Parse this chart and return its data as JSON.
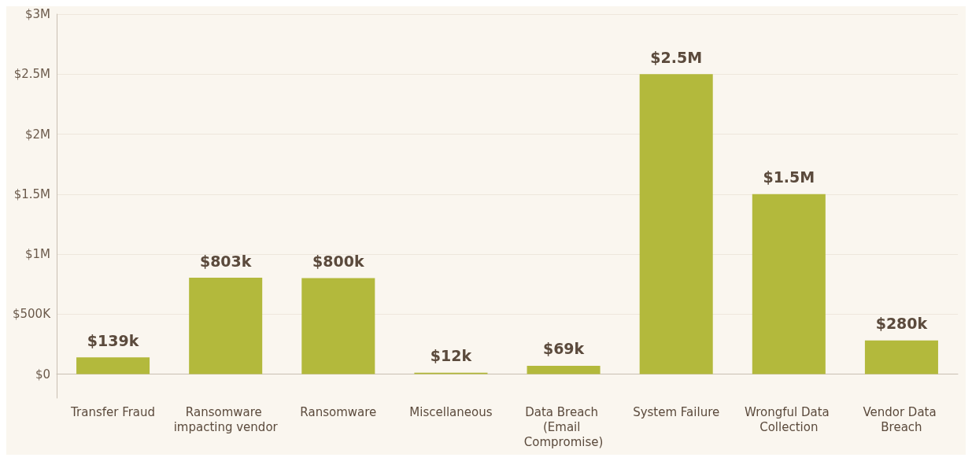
{
  "chart_data": {
    "type": "bar",
    "categories": [
      "Transfer Fraud",
      "Ransomware impacting vendor",
      "Ransomware",
      "Miscellaneous",
      "Data Breach (Email Compromise)",
      "System Failure",
      "Wrongful Data Collection",
      "Vendor Data Breach"
    ],
    "values": [
      139000,
      803000,
      800000,
      12000,
      69000,
      2500000,
      1500000,
      280000
    ],
    "value_labels": [
      "$139k",
      "$803k",
      "$800k",
      "$12k",
      "$69k",
      "$2.5M",
      "$1.5M",
      "$280k"
    ],
    "color": "#b3b93c",
    "ylim": [
      -200000,
      3000000
    ],
    "yticks": [
      {
        "value": 0,
        "label": "$0"
      },
      {
        "value": 500000,
        "label": "$500K"
      },
      {
        "value": 1000000,
        "label": "$1M"
      },
      {
        "value": 1500000,
        "label": "$1.5M"
      },
      {
        "value": 2000000,
        "label": "$2M"
      },
      {
        "value": 2500000,
        "label": "$2.5M"
      },
      {
        "value": 3000000,
        "label": "$3M"
      }
    ],
    "grid": "y"
  }
}
